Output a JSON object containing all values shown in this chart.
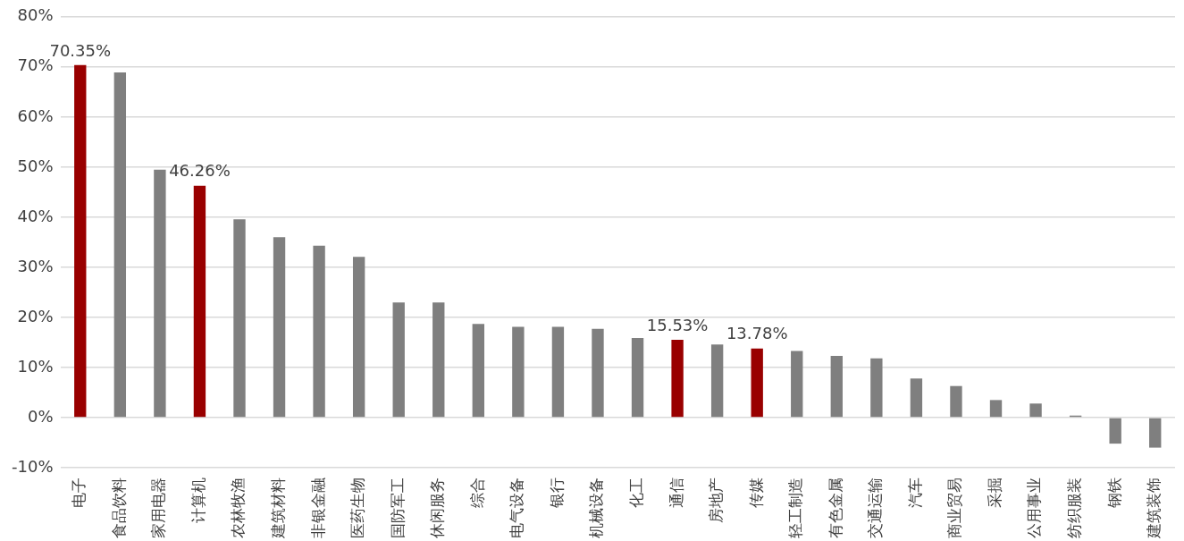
{
  "chart_data": {
    "type": "bar",
    "categories": [
      "电子",
      "食品饮料",
      "家用电器",
      "计算机",
      "农林牧渔",
      "建筑材料",
      "非银金融",
      "医药生物",
      "国防军工",
      "休闲服务",
      "综合",
      "电气设备",
      "银行",
      "机械设备",
      "化工",
      "通信",
      "房地产",
      "传媒",
      "轻工制造",
      "有色金属",
      "交通运输",
      "汽车",
      "商业贸易",
      "采掘",
      "公用事业",
      "纺织服装",
      "钢铁",
      "建筑装饰"
    ],
    "values": [
      70.35,
      68.9,
      49.5,
      46.26,
      39.6,
      36.0,
      34.3,
      32.1,
      23.0,
      23.0,
      18.7,
      18.1,
      18.1,
      17.7,
      15.9,
      15.53,
      14.6,
      13.78,
      13.3,
      12.3,
      11.8,
      7.8,
      6.3,
      3.5,
      2.8,
      0.4,
      -5.2,
      -6.0
    ],
    "colors": [
      "#990000",
      "#7f7f7f",
      "#7f7f7f",
      "#990000",
      "#7f7f7f",
      "#7f7f7f",
      "#7f7f7f",
      "#7f7f7f",
      "#7f7f7f",
      "#7f7f7f",
      "#7f7f7f",
      "#7f7f7f",
      "#7f7f7f",
      "#7f7f7f",
      "#7f7f7f",
      "#990000",
      "#7f7f7f",
      "#990000",
      "#7f7f7f",
      "#7f7f7f",
      "#7f7f7f",
      "#7f7f7f",
      "#7f7f7f",
      "#7f7f7f",
      "#7f7f7f",
      "#7f7f7f",
      "#7f7f7f",
      "#7f7f7f"
    ],
    "value_labels": [
      "70.35%",
      null,
      null,
      "46.26%",
      null,
      null,
      null,
      null,
      null,
      null,
      null,
      null,
      null,
      null,
      null,
      "15.53%",
      null,
      "13.78%",
      null,
      null,
      null,
      null,
      null,
      null,
      null,
      null,
      null,
      null
    ],
    "ylim": [
      -10,
      80
    ],
    "yticks": [
      {
        "value": -10,
        "label": "-10%"
      },
      {
        "value": 0,
        "label": "0%"
      },
      {
        "value": 10,
        "label": "10%"
      },
      {
        "value": 20,
        "label": "20%"
      },
      {
        "value": 30,
        "label": "30%"
      },
      {
        "value": 40,
        "label": "40%"
      },
      {
        "value": 50,
        "label": "50%"
      },
      {
        "value": 60,
        "label": "60%"
      },
      {
        "value": 70,
        "label": "70%"
      },
      {
        "value": 80,
        "label": "80%"
      }
    ],
    "grid": "y",
    "legend": false
  }
}
